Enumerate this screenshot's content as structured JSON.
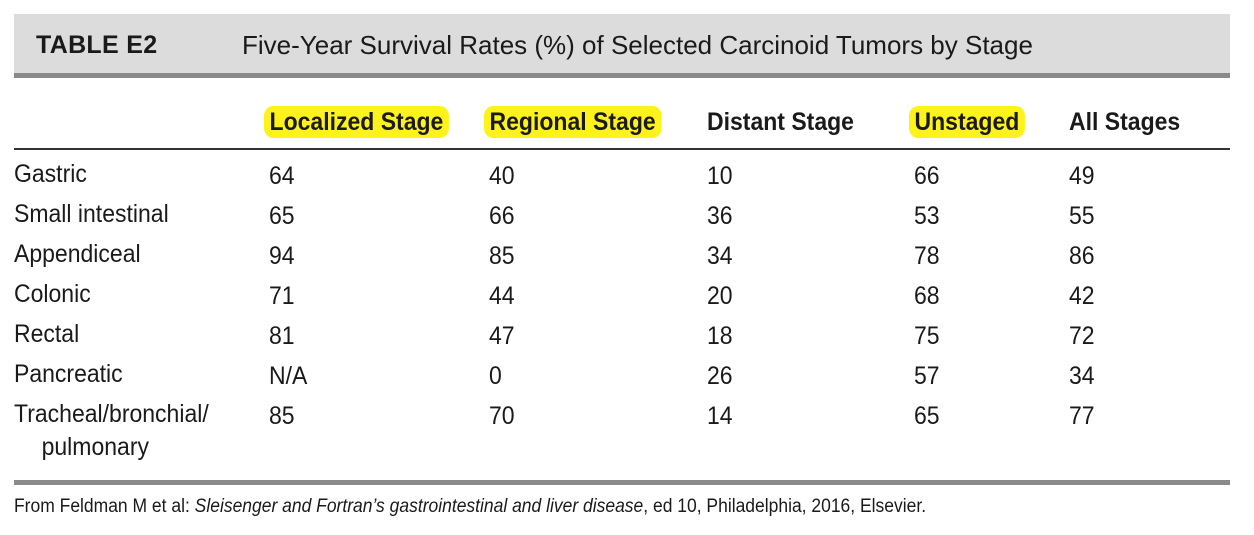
{
  "title": {
    "label": "TABLE E2",
    "text": "Five-Year Survival Rates (%) of Selected Carcinoid Tumors by Stage"
  },
  "columns": [
    {
      "label": "Localized Stage",
      "highlighted": true
    },
    {
      "label": "Regional Stage",
      "highlighted": true
    },
    {
      "label": "Distant Stage",
      "highlighted": false
    },
    {
      "label": "Unstaged",
      "highlighted": true
    },
    {
      "label": "All Stages",
      "highlighted": false
    }
  ],
  "rows": [
    {
      "name": "Gastric",
      "values": [
        "64",
        "40",
        "10",
        "66",
        "49"
      ]
    },
    {
      "name": "Small intestinal",
      "values": [
        "65",
        "66",
        "36",
        "53",
        "55"
      ]
    },
    {
      "name": "Appendiceal",
      "values": [
        "94",
        "85",
        "34",
        "78",
        "86"
      ]
    },
    {
      "name": "Colonic",
      "values": [
        "71",
        "44",
        "20",
        "68",
        "42"
      ]
    },
    {
      "name": "Rectal",
      "values": [
        "81",
        "47",
        "18",
        "75",
        "72"
      ]
    },
    {
      "name": "Pancreatic",
      "values": [
        "N/A",
        "0",
        "26",
        "57",
        "34"
      ]
    },
    {
      "name_line1": "Tracheal/bronchial/",
      "name_line2": "pulmonary",
      "values": [
        "85",
        "70",
        "14",
        "65",
        "77"
      ]
    }
  ],
  "source": {
    "prefix": "From Feldman M et al: ",
    "italic": "Sleisenger and Fortran’s gastrointestinal and liver disease",
    "suffix": ", ed 10, Philadelphia, 2016, Elsevier."
  },
  "colors": {
    "title_bg": "#dcdcdc",
    "rule": "#8a8a8a",
    "highlight": "#fdf31b"
  }
}
